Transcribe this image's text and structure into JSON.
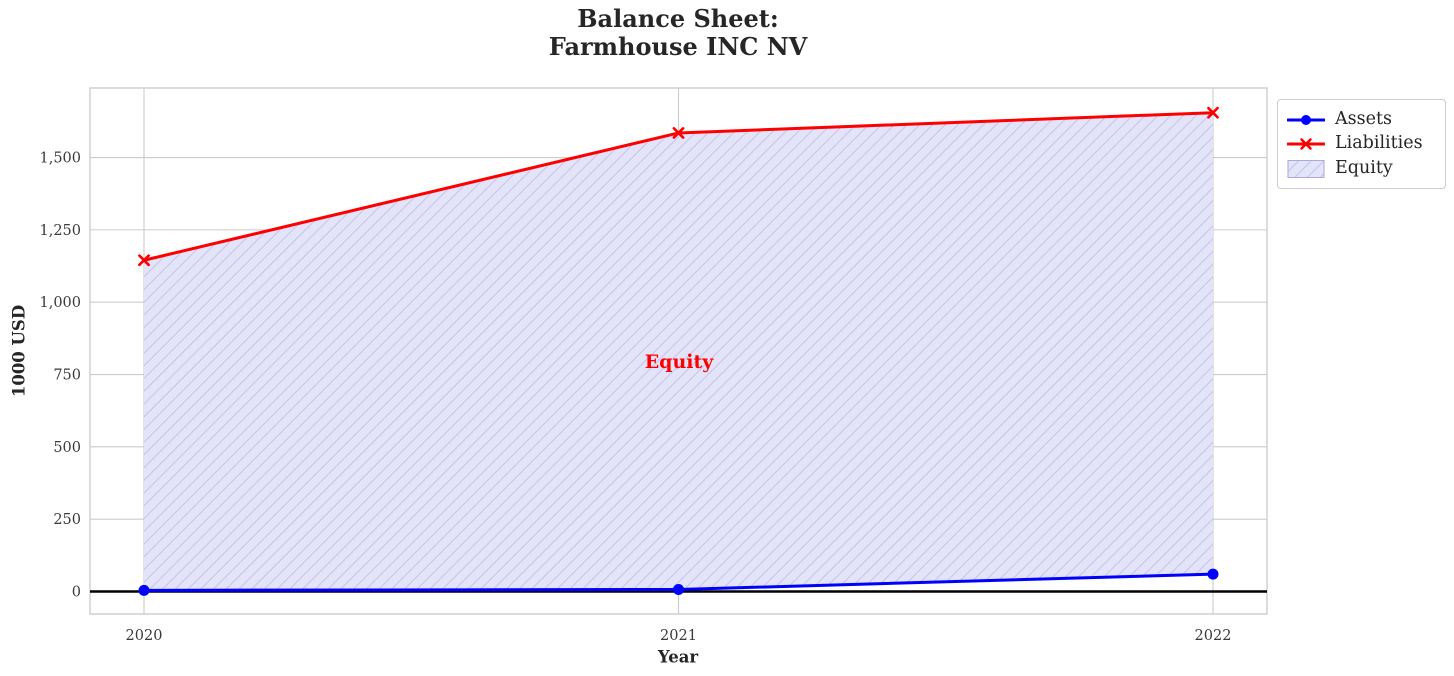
{
  "chart_data": {
    "type": "area",
    "title": "Balance Sheet:\nFarmhouse INC NV",
    "xlabel": "Year",
    "ylabel": "1000 USD",
    "x": [
      2020,
      2021,
      2022
    ],
    "xtick_labels": [
      "2020",
      "2021",
      "2022"
    ],
    "yticks": [
      0,
      250,
      500,
      750,
      1000,
      1250,
      1500
    ],
    "ytick_labels": [
      "0",
      "250",
      "500",
      "750",
      "1,000",
      "1,250",
      "1,500"
    ],
    "ylim": [
      -78,
      1740
    ],
    "grid": true,
    "series": [
      {
        "name": "Assets",
        "color": "#0000ff",
        "marker": "circle",
        "values": [
          4,
          7,
          60
        ]
      },
      {
        "name": "Liabilities",
        "color": "#ff0000",
        "marker": "x",
        "values": [
          1145,
          1585,
          1655
        ]
      }
    ],
    "fill_between": {
      "name": "Equity",
      "between": [
        "Assets",
        "Liabilities"
      ],
      "facecolor": "#e4e4f8",
      "hatch": "/",
      "hatch_color": "#c2c2ee",
      "edge_color": "#aaaadd"
    },
    "annotation": {
      "text": "Equity",
      "x": 2021,
      "y": 795,
      "color": "#ff0000"
    },
    "zero_line_color": "#000000",
    "axis_style": {
      "grid_color": "#cccccc",
      "frame_color": "#cccccc",
      "tick_text_color": "#3a3a3a"
    },
    "legend_position": "upper right"
  }
}
